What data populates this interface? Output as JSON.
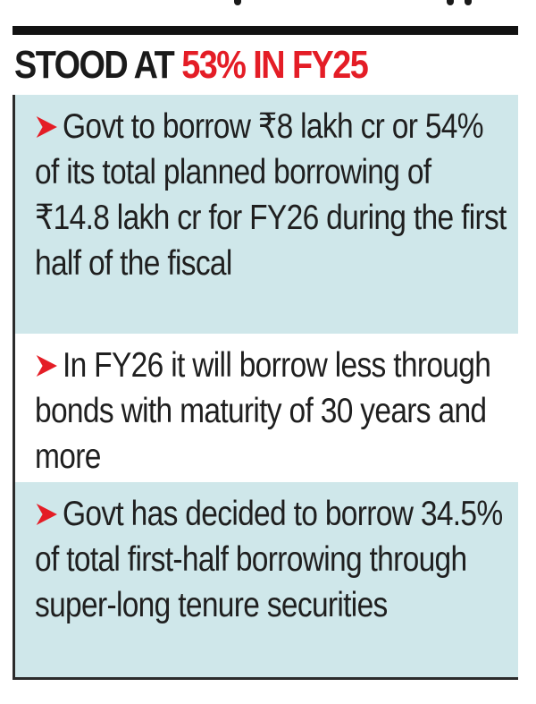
{
  "headline": {
    "prefix": "STOOD AT",
    "accent": "53% IN FY25"
  },
  "items": [
    {
      "text": "Govt to borrow ₹8 lakh cr or 54% of its total planned borrowing of ₹14.8 lakh cr for FY26 during the first half of the fiscal"
    },
    {
      "text": "In FY26 it will borrow less through bonds with maturity of 30 years and more"
    },
    {
      "text": "Govt has decided to borrow 34.5% of total first-half borrowing through super-long tenure securities"
    }
  ],
  "colors": {
    "accent": "#e41d26",
    "box_fill": "#cfe7ea",
    "text": "#1f1f1f",
    "rule": "#121212"
  },
  "icons": {
    "bullet": "red-arrow-bullet-icon"
  }
}
